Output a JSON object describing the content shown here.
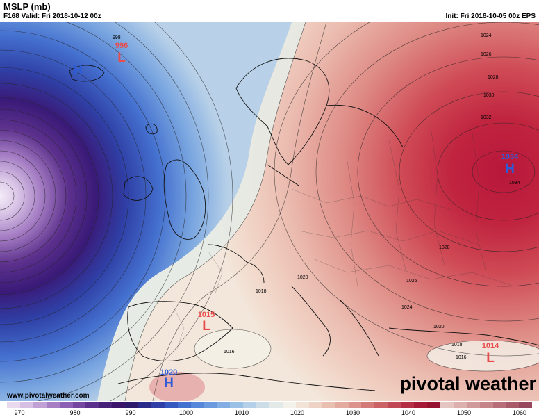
{
  "header": {
    "title": "MSLP (mb)",
    "valid": "F168 Valid: Fri 2018-10-12 00z",
    "init": "Init: Fri 2018-10-05 00z EPS"
  },
  "pressure_centers": [
    {
      "id": "iceland-low",
      "type": "L",
      "value": "996",
      "color": "#e84b4b"
    },
    {
      "id": "greenland-high",
      "type": "H",
      "value": "",
      "color": "#2e5bd6"
    },
    {
      "id": "russia-high",
      "type": "H",
      "value": "1034",
      "color": "#2e5bd6"
    },
    {
      "id": "med-low",
      "type": "L",
      "value": "1015",
      "color": "#e84b4b"
    },
    {
      "id": "sahara-high",
      "type": "H",
      "value": "1020",
      "color": "#2e5bd6"
    },
    {
      "id": "turkey-low",
      "type": "L",
      "value": "1014",
      "color": "#e84b4b"
    }
  ],
  "isobar_labels": [
    "998",
    "1024",
    "1026",
    "1028",
    "1030",
    "1032",
    "1034",
    "1028",
    "1026",
    "1024",
    "1020",
    "1018",
    "1020",
    "1016",
    "1018",
    "1016"
  ],
  "colorbar": {
    "labels": [
      "970",
      "980",
      "990",
      "1000",
      "1010",
      "1020",
      "1030",
      "1040",
      "1050",
      "1060"
    ],
    "colors": [
      "#e9d9ef",
      "#d6bfe3",
      "#c1a0d6",
      "#a57ec4",
      "#8b5fb3",
      "#7447a0",
      "#5c318d",
      "#482179",
      "#3a1569",
      "#2d1a6b",
      "#2a2a8a",
      "#2f3fa5",
      "#3658bf",
      "#4470cf",
      "#5687d8",
      "#6b9bde",
      "#82aee3",
      "#9bc0e6",
      "#b4d0e8",
      "#cddde7",
      "#e3e9e6",
      "#f3f1ea",
      "#f3e3d7",
      "#eed2c4",
      "#e9bfb2",
      "#e3aaa0",
      "#dc938d",
      "#d47b79",
      "#cb6266",
      "#c14955",
      "#b52f44",
      "#a61a38",
      "#96122f",
      "#e5c5c0",
      "#dcb0ad",
      "#d19a9a",
      "#c58488",
      "#b86e78",
      "#a95a69",
      "#98485c"
    ]
  },
  "website": "www.pivotalweather.com",
  "logo": "pivotal weather"
}
